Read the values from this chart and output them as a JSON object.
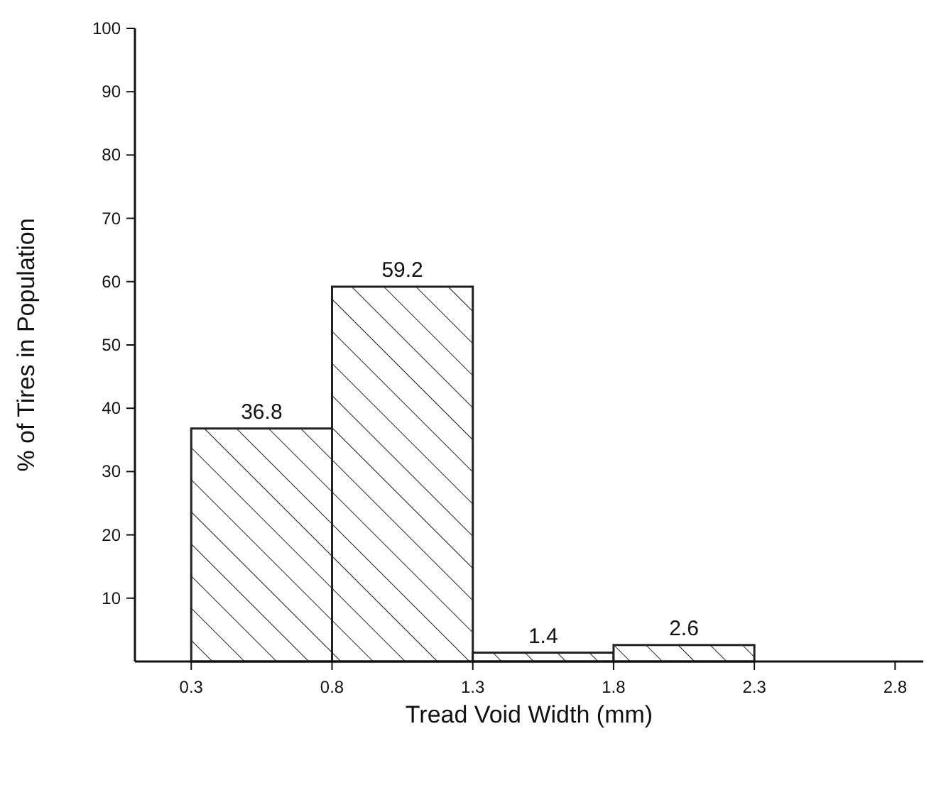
{
  "chart_data": {
    "type": "histogram",
    "xlabel": "Tread Void Width (mm)",
    "ylabel": "% of Tires in Population",
    "bins": [
      0.3,
      0.8,
      1.3,
      1.8,
      2.3
    ],
    "values": [
      36.8,
      59.2,
      1.4,
      2.6
    ],
    "color": "#222222",
    "data_labels": true,
    "xlim": [
      0.1,
      2.9
    ],
    "xticks": [
      0.3,
      0.8,
      1.3,
      1.8,
      2.3,
      2.8
    ],
    "ylim": [
      0,
      100
    ],
    "yticks": [
      10,
      20,
      30,
      40,
      50,
      60,
      70,
      80,
      90,
      100
    ],
    "grid": false
  }
}
